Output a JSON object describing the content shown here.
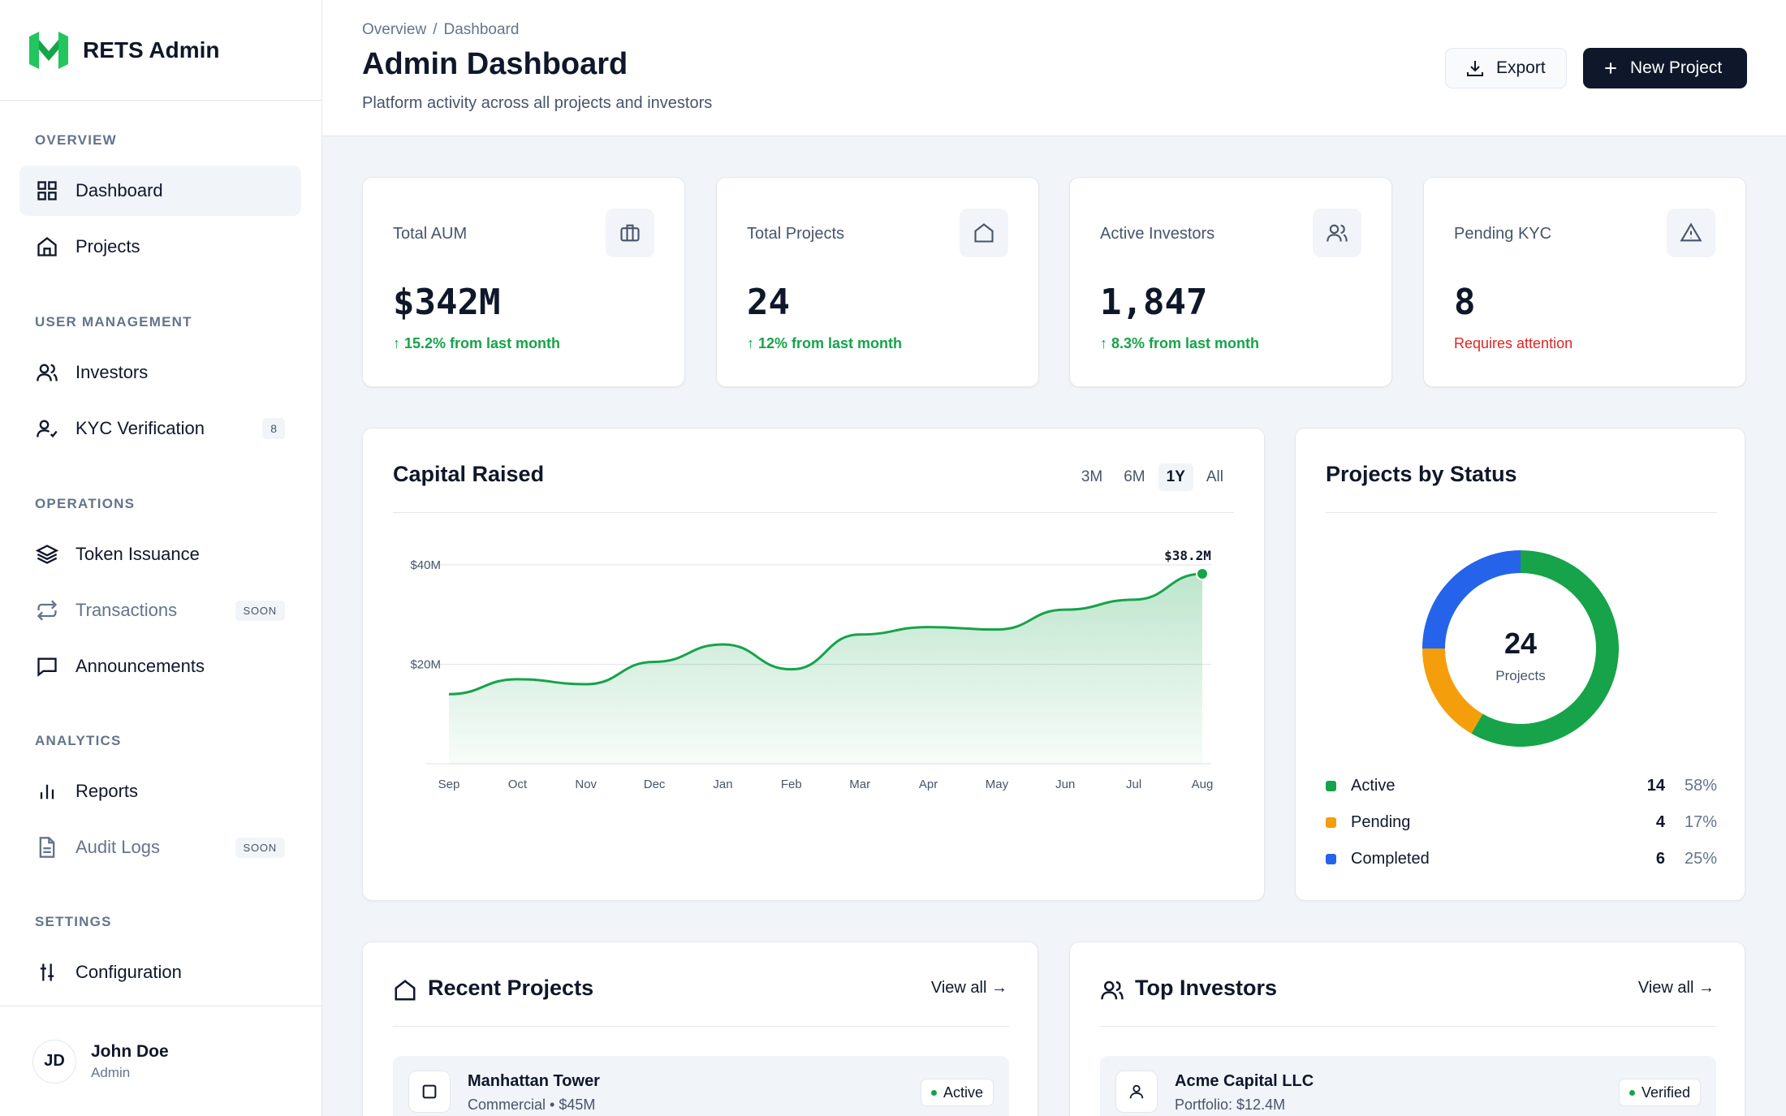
{
  "brand": {
    "name": "RETS Admin"
  },
  "sidebar": {
    "sections": [
      {
        "label": "OVERVIEW"
      },
      {
        "label": "USER MANAGEMENT"
      },
      {
        "label": "OPERATIONS"
      },
      {
        "label": "ANALYTICS"
      },
      {
        "label": "SETTINGS"
      }
    ],
    "items": [
      {
        "label": "Dashboard",
        "icon": "grid-icon"
      },
      {
        "label": "Projects",
        "icon": "home-icon"
      },
      {
        "label": "Investors",
        "icon": "users-icon"
      },
      {
        "label": "KYC Verification",
        "icon": "user-check-icon",
        "badge": "8"
      },
      {
        "label": "Token Issuance",
        "icon": "layers-icon"
      },
      {
        "label": "Transactions",
        "icon": "repeat-icon",
        "badge": "SOON"
      },
      {
        "label": "Announcements",
        "icon": "message-icon"
      },
      {
        "label": "Reports",
        "icon": "bar-chart-icon"
      },
      {
        "label": "Audit Logs",
        "icon": "file-icon",
        "badge": "SOON"
      },
      {
        "label": "Configuration",
        "icon": "sliders-icon"
      }
    ],
    "user": {
      "initials": "JD",
      "name": "John Doe",
      "role": "Admin"
    }
  },
  "header": {
    "breadcrumb": [
      "Overview",
      "Dashboard"
    ],
    "breadcrumb_sep": "/",
    "title": "Admin Dashboard",
    "subtitle": "Platform activity across all projects and investors",
    "export_label": "Export",
    "new_project_label": "New Project"
  },
  "stats": [
    {
      "label": "Total AUM",
      "value": "$342M",
      "delta": "↑ 15.2% from last month",
      "icon": "briefcase-icon"
    },
    {
      "label": "Total Projects",
      "value": "24",
      "delta": "↑ 12% from last month",
      "icon": "home-icon"
    },
    {
      "label": "Active Investors",
      "value": "1,847",
      "delta": "↑ 8.3% from last month",
      "icon": "users-icon"
    },
    {
      "label": "Pending KYC",
      "value": "8",
      "delta": "Requires attention",
      "icon": "alert-triangle-icon"
    }
  ],
  "capital": {
    "title": "Capital Raised",
    "ranges": [
      "3M",
      "6M",
      "1Y",
      "All"
    ],
    "selected_range": "1Y",
    "callout": "$38.2M"
  },
  "chart_data": {
    "type": "area",
    "title": "Capital Raised",
    "x": [
      "Sep",
      "Oct",
      "Nov",
      "Dec",
      "Jan",
      "Feb",
      "Mar",
      "Apr",
      "May",
      "Jun",
      "Jul",
      "Aug"
    ],
    "series": [
      {
        "values": [
          14,
          17,
          16,
          20.5,
          24,
          19,
          26,
          27.5,
          27,
          31,
          33,
          38.2
        ]
      }
    ],
    "y_ticks": [
      "$20M",
      "$40M"
    ],
    "ylim": [
      0,
      40
    ],
    "color": "#16a34a",
    "grid": true
  },
  "status": {
    "title": "Projects by Status",
    "total": "24",
    "total_label": "Projects",
    "items": [
      {
        "name": "Active",
        "count": "14",
        "pct": "58%",
        "value": 14,
        "color": "#16a34a"
      },
      {
        "name": "Pending",
        "count": "4",
        "pct": "17%",
        "value": 4,
        "color": "#f59e0b"
      },
      {
        "name": "Completed",
        "count": "6",
        "pct": "25%",
        "value": 6,
        "color": "#2563eb"
      }
    ]
  },
  "recent_projects": {
    "title": "Recent Projects",
    "view_all": "View all →",
    "rows": [
      {
        "name": "Manhattan Tower",
        "meta": "Commercial • $45M",
        "status": "Active"
      }
    ]
  },
  "top_investors": {
    "title": "Top Investors",
    "view_all": "View all →",
    "rows": [
      {
        "name": "Acme Capital LLC",
        "meta": "Portfolio: $12.4M",
        "status": "Verified"
      }
    ]
  }
}
